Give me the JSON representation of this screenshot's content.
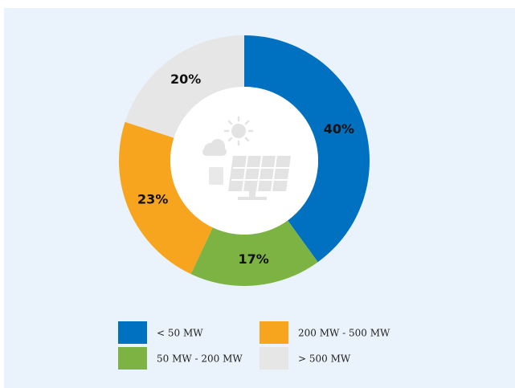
{
  "chart_data": {
    "type": "donut",
    "categories": [
      "< 50 MW",
      "50 MW - 200 MW",
      "200 MW - 500 MW",
      "> 500 MW"
    ],
    "values": [
      40,
      17,
      23,
      20
    ],
    "value_labels": [
      "40%",
      "17%",
      "23%",
      "20%"
    ],
    "colors": [
      "#0070c0",
      "#7cb342",
      "#f7a51e",
      "#e6e6e6"
    ]
  }
}
